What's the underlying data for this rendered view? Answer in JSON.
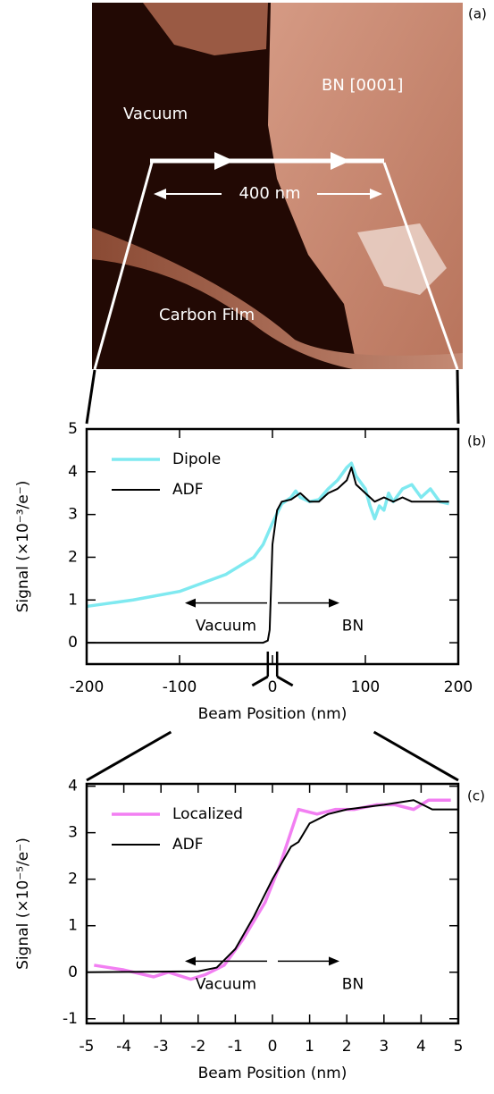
{
  "image_panel": {
    "label": "(a)",
    "annotations": [
      "Vacuum",
      "BN [0001]",
      "400 nm",
      "Carbon Film"
    ]
  },
  "chart_data": [
    {
      "type": "line",
      "panel_label": "(b)",
      "x_label": "Beam Position (nm)",
      "y_label": "Signal (×10⁻³/e⁻)",
      "xlim": [
        -200,
        200
      ],
      "xticks": [
        -200,
        -100,
        0,
        100,
        200
      ],
      "ylim": [
        -0.5,
        5
      ],
      "yticks": [
        0,
        1,
        2,
        3,
        4,
        5
      ],
      "legend": "upper left",
      "annotations": [
        "Vacuum",
        "BN"
      ],
      "series": [
        {
          "name": "Dipole",
          "color": "#7fe9f0",
          "x": [
            -200,
            -150,
            -100,
            -50,
            -20,
            -10,
            0,
            10,
            20,
            25,
            30,
            40,
            50,
            60,
            70,
            80,
            85,
            90,
            100,
            105,
            110,
            115,
            120,
            125,
            130,
            140,
            150,
            160,
            170,
            180,
            190
          ],
          "values": [
            0.85,
            1.0,
            1.2,
            1.6,
            2.0,
            2.3,
            2.8,
            3.25,
            3.4,
            3.55,
            3.4,
            3.3,
            3.35,
            3.6,
            3.8,
            4.1,
            4.2,
            3.9,
            3.6,
            3.2,
            2.9,
            3.2,
            3.1,
            3.5,
            3.3,
            3.6,
            3.7,
            3.4,
            3.6,
            3.3,
            3.25
          ]
        },
        {
          "name": "ADF",
          "color": "#000000",
          "x": [
            -200,
            -10,
            -5,
            -3,
            0,
            5,
            10,
            20,
            30,
            40,
            50,
            60,
            70,
            80,
            85,
            90,
            100,
            110,
            120,
            130,
            140,
            150,
            170,
            190
          ],
          "values": [
            0,
            0,
            0.05,
            0.3,
            2.3,
            3.1,
            3.3,
            3.35,
            3.5,
            3.3,
            3.3,
            3.5,
            3.6,
            3.8,
            4.1,
            3.7,
            3.5,
            3.3,
            3.4,
            3.3,
            3.4,
            3.3,
            3.3,
            3.3
          ]
        }
      ]
    },
    {
      "type": "line",
      "panel_label": "(c)",
      "x_label": "Beam Position (nm)",
      "y_label": "Signal (×10⁻⁵/e⁻)",
      "xlim": [
        -5,
        5
      ],
      "xticks": [
        -5,
        -4,
        -3,
        -2,
        -1,
        0,
        1,
        2,
        3,
        4,
        5
      ],
      "ylim": [
        -1.1,
        4.05
      ],
      "yticks": [
        -1,
        0,
        1,
        2,
        3,
        4
      ],
      "legend": "upper left",
      "annotations": [
        "Vacuum",
        "BN"
      ],
      "series": [
        {
          "name": "Localized",
          "color": "#f27ff2",
          "x": [
            -4.8,
            -4,
            -3.2,
            -2.8,
            -2.2,
            -1.8,
            -1.3,
            -0.8,
            -0.2,
            0.2,
            0.7,
            1.2,
            1.7,
            2.2,
            2.8,
            3.3,
            3.8,
            4.2,
            4.8
          ],
          "values": [
            0.15,
            0.05,
            -0.1,
            0,
            -0.15,
            -0.05,
            0.15,
            0.7,
            1.5,
            2.3,
            3.5,
            3.4,
            3.5,
            3.5,
            3.6,
            3.6,
            3.5,
            3.7,
            3.7
          ]
        },
        {
          "name": "ADF",
          "color": "#000000",
          "x": [
            -5,
            -2,
            -1.5,
            -1,
            -0.5,
            0,
            0.5,
            0.7,
            1,
            1.5,
            2,
            3,
            3.8,
            4.3,
            5
          ],
          "values": [
            0,
            0.02,
            0.1,
            0.5,
            1.2,
            2.0,
            2.7,
            2.8,
            3.2,
            3.4,
            3.5,
            3.6,
            3.7,
            3.5,
            3.5
          ]
        }
      ]
    }
  ]
}
